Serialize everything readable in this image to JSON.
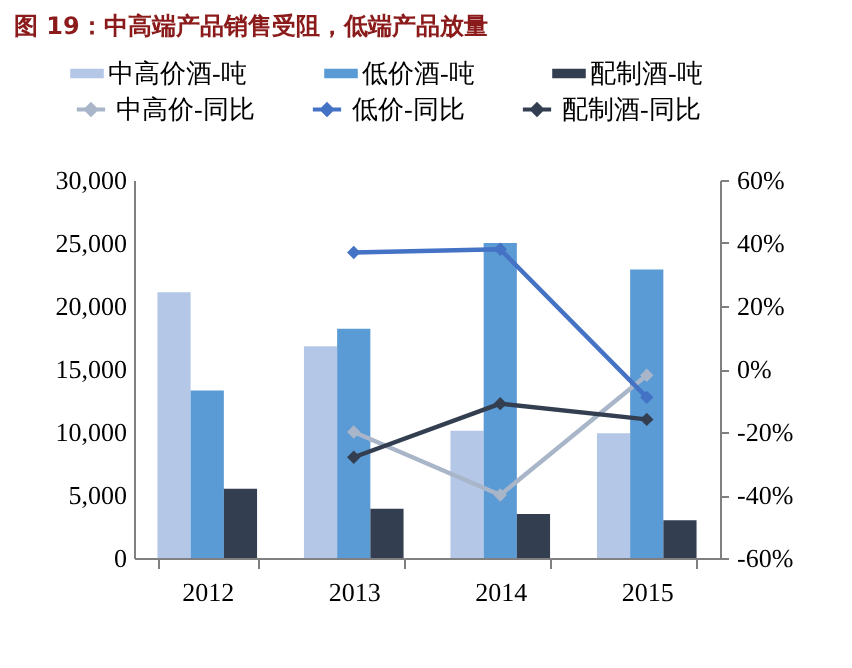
{
  "chart_data": {
    "type": "bar",
    "title": "图 19：中高端产品销售受阻，低端产品放量",
    "categories": [
      "2012",
      "2013",
      "2014",
      "2015"
    ],
    "series": [
      {
        "name": "中高价酒-吨",
        "type": "bar",
        "color": "#b4c7e7",
        "values": [
          21100,
          16800,
          10100,
          9900
        ]
      },
      {
        "name": "低价酒-吨",
        "type": "bar",
        "color": "#5b9bd5",
        "values": [
          13300,
          18200,
          25000,
          22900
        ]
      },
      {
        "name": "配制酒-吨",
        "type": "bar",
        "color": "#333f50",
        "values": [
          5500,
          3900,
          3500,
          3000
        ]
      },
      {
        "name": "中高价-同比",
        "type": "line",
        "axis": "y2",
        "color": "#a9b5c9",
        "values": [
          null,
          -20,
          -40,
          -2
        ]
      },
      {
        "name": "低价-同比",
        "type": "line",
        "axis": "y2",
        "color": "#4472c4",
        "values": [
          null,
          37,
          38,
          -9
        ]
      },
      {
        "name": "配制酒-同比",
        "type": "line",
        "axis": "y2",
        "color": "#333f50",
        "values": [
          null,
          -28,
          -11,
          -16
        ]
      }
    ],
    "ylim": [
      0,
      30000
    ],
    "yticks": [
      0,
      {
        "value": 5000,
        "label": "5,000"
      },
      {
        "value": 10000,
        "label": "10,000"
      },
      {
        "value": 15000,
        "label": "15,000"
      },
      {
        "value": 20000,
        "label": "20,000"
      },
      {
        "value": 25000,
        "label": "25,000"
      },
      {
        "value": 30000,
        "label": "30,000"
      }
    ],
    "y2lim": [
      -60,
      60
    ],
    "y2ticks": [
      {
        "value": -60,
        "label": "-60%"
      },
      {
        "value": -40,
        "label": "-40%"
      },
      {
        "value": -20,
        "label": "-20%"
      },
      {
        "value": 0,
        "label": "0%"
      },
      {
        "value": 20,
        "label": "20%"
      },
      {
        "value": 40,
        "label": "40%"
      },
      {
        "value": 60,
        "label": "60%"
      }
    ],
    "legend": "top",
    "marker": "diamond",
    "line_style": "solid"
  }
}
